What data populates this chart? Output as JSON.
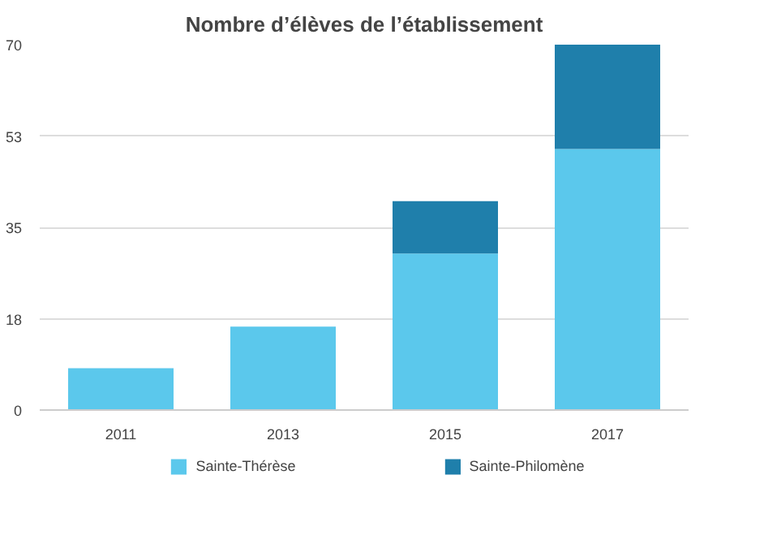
{
  "chart_data": {
    "type": "bar",
    "title": "Nombre d’élèves de l’établissement",
    "categories": [
      "2011",
      "2013",
      "2015",
      "2017"
    ],
    "stacked": true,
    "series": [
      {
        "name": "Sainte-Thérèse",
        "color": "#5bc8ec",
        "values": [
          8,
          16,
          30,
          50
        ]
      },
      {
        "name": "Sainte-Philomène",
        "color": "#1f7fab",
        "values": [
          null,
          null,
          10,
          20
        ]
      }
    ],
    "ylim": [
      0,
      70
    ],
    "yticks": [
      0,
      {
        "value": 17.5,
        "label": "18"
      },
      35,
      {
        "value": 52.5,
        "label": "53"
      },
      70
    ],
    "grid": "y",
    "legend": "bottom"
  }
}
